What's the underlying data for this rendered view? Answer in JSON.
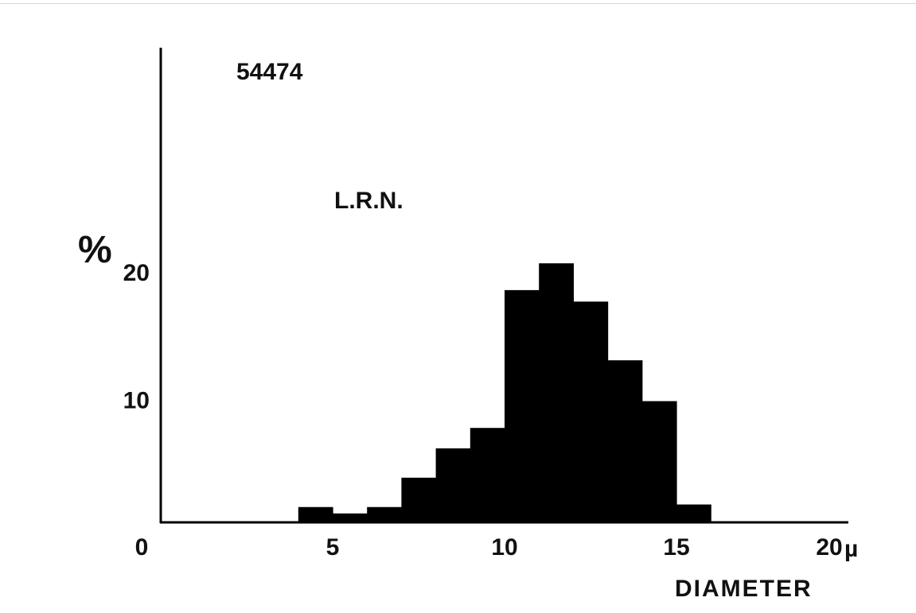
{
  "chart_data": {
    "type": "bar",
    "title": "54474",
    "annotation": "L.R.N.",
    "ylabel_symbol": "%",
    "xlabel": "DIAMETER",
    "x_unit": "µ",
    "bin_width": 1,
    "bins": [
      {
        "x0": 4,
        "x1": 5,
        "value": 1.2
      },
      {
        "x0": 5,
        "x1": 6,
        "value": 0.7
      },
      {
        "x0": 6,
        "x1": 7,
        "value": 1.2
      },
      {
        "x0": 7,
        "x1": 8,
        "value": 3.5
      },
      {
        "x0": 8,
        "x1": 9,
        "value": 5.8
      },
      {
        "x0": 9,
        "x1": 10,
        "value": 7.4
      },
      {
        "x0": 10,
        "x1": 11,
        "value": 18.2
      },
      {
        "x0": 11,
        "x1": 12,
        "value": 20.3
      },
      {
        "x0": 12,
        "x1": 13,
        "value": 17.3
      },
      {
        "x0": 13,
        "x1": 14,
        "value": 12.7
      },
      {
        "x0": 14,
        "x1": 15,
        "value": 9.5
      },
      {
        "x0": 15,
        "x1": 16,
        "value": 1.4
      }
    ],
    "xlim": [
      0,
      20
    ],
    "ylim": [
      0,
      37
    ],
    "x_ticks": [
      {
        "value": 0,
        "label": "0"
      },
      {
        "value": 5,
        "label": "5"
      },
      {
        "value": 10,
        "label": "10"
      },
      {
        "value": 15,
        "label": "15"
      },
      {
        "value": 20,
        "label": "20"
      }
    ],
    "y_ticks": [
      {
        "value": 10,
        "label": "10"
      },
      {
        "value": 20,
        "label": "20"
      }
    ],
    "grid": false,
    "bar_color": "#000000"
  }
}
